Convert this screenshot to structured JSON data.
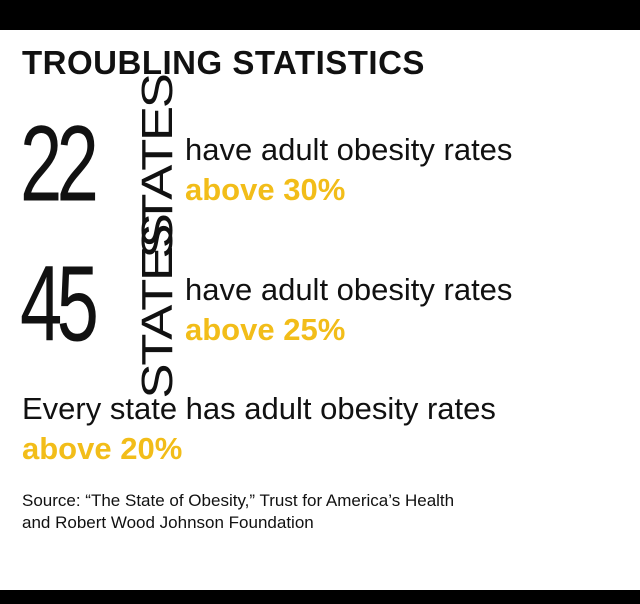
{
  "title": "TROUBLING STATISTICS",
  "stats": [
    {
      "number": "22",
      "unit": "STATES",
      "line1": "have adult obesity rates",
      "line2": "above 30%"
    },
    {
      "number": "45",
      "unit": "STATES",
      "line1": "have adult obesity rates",
      "line2": "above 25%"
    }
  ],
  "every_state": {
    "line1": "Every state has adult obesity rates",
    "line2": "above 20%"
  },
  "source": {
    "line1": "Source: “The State of Obesity,” Trust for America’s Health",
    "line2": "and Robert Wood Johnson Foundation"
  },
  "colors": {
    "accent": "#f2bd19",
    "text": "#111111",
    "bar": "#000000",
    "background": "#ffffff"
  }
}
